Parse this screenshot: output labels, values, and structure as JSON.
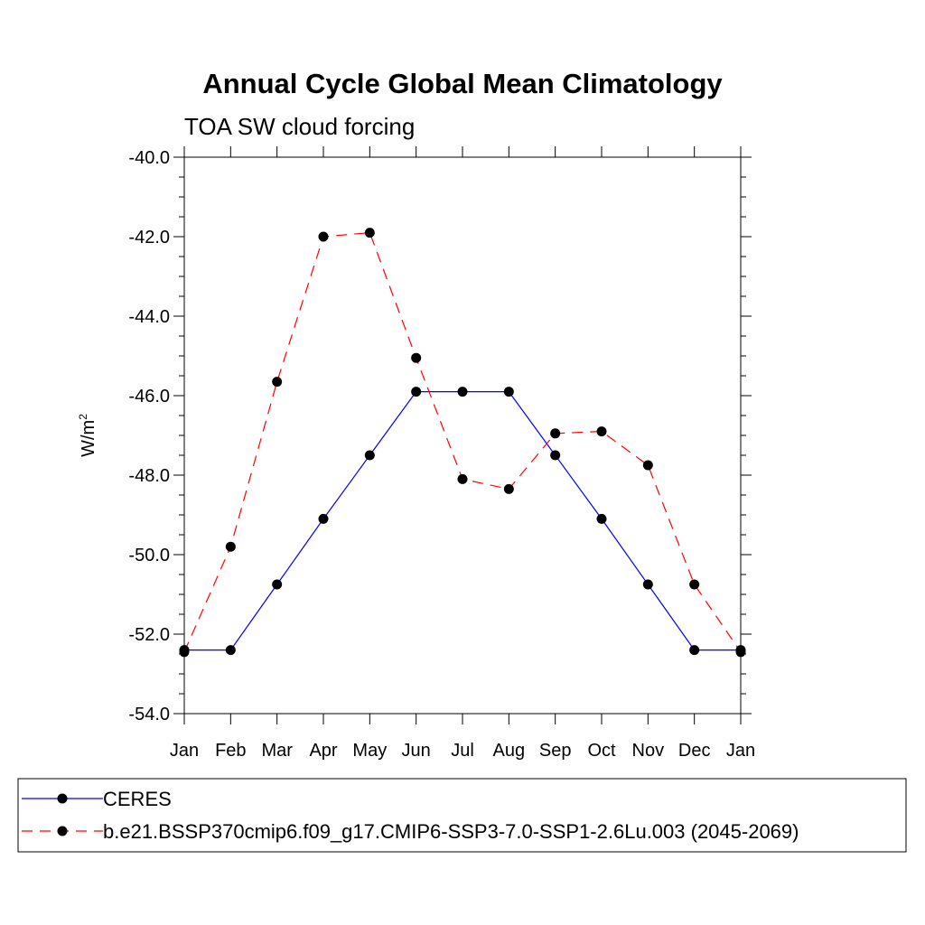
{
  "chart_data": {
    "type": "line",
    "title": "Annual Cycle Global Mean Climatology",
    "subtitle": "TOA SW cloud forcing",
    "ylabel": "W/m",
    "ylabel_superscript": "2",
    "xlabel": "",
    "categories": [
      "Jan",
      "Feb",
      "Mar",
      "Apr",
      "May",
      "Jun",
      "Jul",
      "Aug",
      "Sep",
      "Oct",
      "Nov",
      "Dec",
      "Jan"
    ],
    "ylim": [
      -54.0,
      -40.0
    ],
    "yticks": [
      "-54.0",
      "-52.0",
      "-50.0",
      "-48.0",
      "-46.0",
      "-44.0",
      "-42.0",
      "-40.0"
    ],
    "grid": false,
    "legend_position": "bottom",
    "series": [
      {
        "name": "CERES",
        "color": "#0000ff",
        "dash": "solid",
        "values": [
          -52.4,
          -52.4,
          -50.75,
          -49.1,
          -47.5,
          -45.9,
          -45.9,
          -45.9,
          -47.5,
          -49.1,
          -50.75,
          -52.4,
          -52.4
        ]
      },
      {
        "name": "b.e21.BSSP370cmip6.f09_g17.CMIP6-SSP3-7.0-SSP1-2.6Lu.003 (2045-2069)",
        "color": "#ff0000",
        "dash": "dashed",
        "values": [
          -52.45,
          -49.8,
          -45.65,
          -42.0,
          -41.9,
          -45.05,
          -48.1,
          -48.35,
          -46.95,
          -46.9,
          -47.75,
          -50.75,
          -52.45
        ]
      }
    ]
  }
}
